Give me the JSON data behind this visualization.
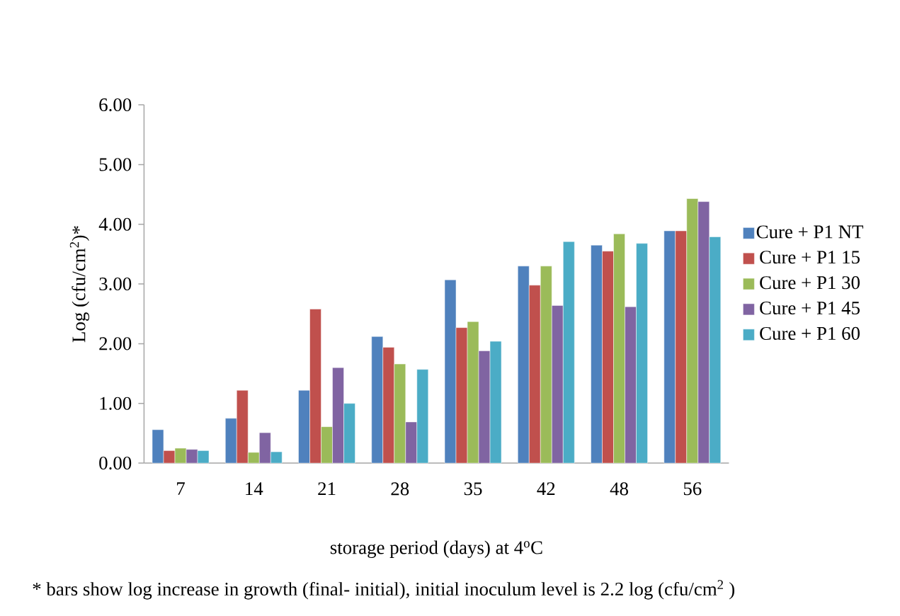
{
  "chart_data": {
    "type": "bar",
    "xlabel": "storage period (days) at 4$^{o}$C",
    "ylabel": "Log (cfu/cm$^{2}$)*",
    "categories": [
      "7",
      "14",
      "21",
      "28",
      "35",
      "42",
      "48",
      "56"
    ],
    "series": [
      {
        "name": "Cure + P1 NT",
        "color": "#4f81bd",
        "values": [
          0.56,
          0.75,
          1.22,
          2.12,
          3.07,
          3.3,
          3.65,
          3.89
        ]
      },
      {
        "name": "Cure + P1 15",
        "color": "#c0504d",
        "values": [
          0.21,
          1.22,
          2.58,
          1.94,
          2.27,
          2.98,
          3.55,
          3.89
        ]
      },
      {
        "name": "Cure + P1 30",
        "color": "#9bbb59",
        "values": [
          0.25,
          0.18,
          0.61,
          1.66,
          2.37,
          3.3,
          3.84,
          4.43
        ]
      },
      {
        "name": "Cure + P1 45",
        "color": "#8064a2",
        "values": [
          0.23,
          0.51,
          1.6,
          0.69,
          1.88,
          2.64,
          2.62,
          4.38
        ]
      },
      {
        "name": "Cure + P1 60",
        "color": "#4bacc6",
        "values": [
          0.21,
          0.19,
          1.0,
          1.57,
          2.04,
          3.71,
          3.68,
          3.79
        ]
      }
    ],
    "ylim": [
      0,
      6
    ],
    "yticks": [
      {
        "value": 0,
        "label": "0.00"
      },
      {
        "value": 1,
        "label": "1.00"
      },
      {
        "value": 2,
        "label": "2.00"
      },
      {
        "value": 3,
        "label": "3.00"
      },
      {
        "value": 4,
        "label": "4.00"
      },
      {
        "value": 5,
        "label": "5.00"
      },
      {
        "value": 6,
        "label": "6.00"
      }
    ],
    "legend": "right",
    "annotations": [
      "* bars show log increase in growth (final- initial), initial inoculum level is 2.2 log (cfu/cm$^{2}$ )"
    ]
  }
}
